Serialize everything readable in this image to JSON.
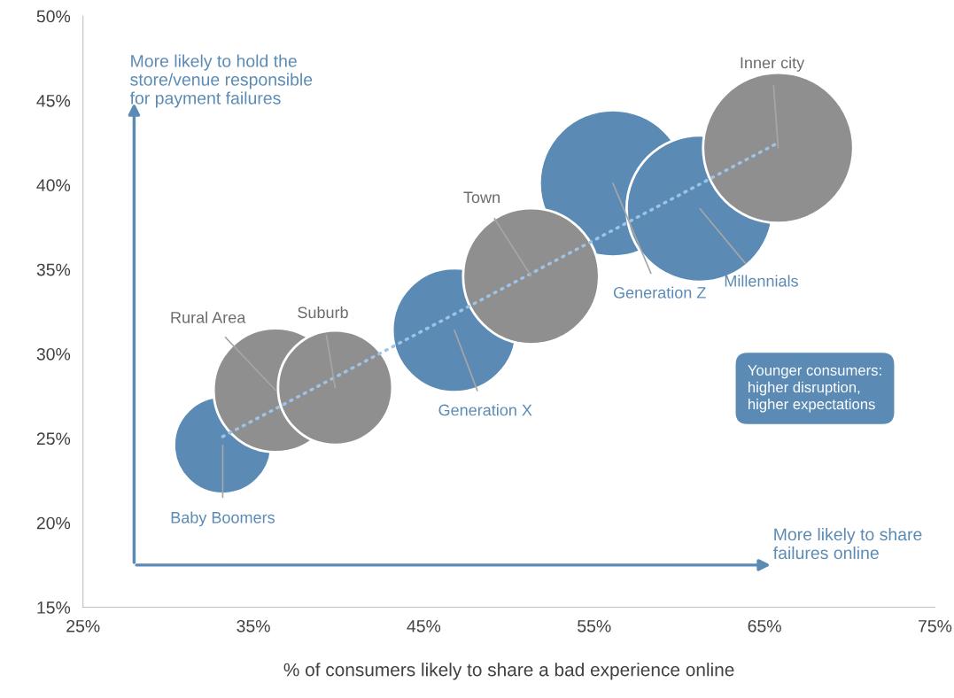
{
  "chart_data": {
    "type": "bubble",
    "xlabel": "% of consumers likely to share a bad experience online",
    "xlim": [
      25,
      75
    ],
    "ylim": [
      15,
      50
    ],
    "xticks": [
      {
        "value": 25,
        "label": "25%"
      },
      {
        "value": 35,
        "label": "35%"
      },
      {
        "value": 45,
        "label": "45%"
      },
      {
        "value": 55,
        "label": "55%"
      },
      {
        "value": 65,
        "label": "65%"
      },
      {
        "value": 75,
        "label": "75%"
      }
    ],
    "yticks": [
      {
        "value": 15,
        "label": "15%"
      },
      {
        "value": 20,
        "label": "20%"
      },
      {
        "value": 25,
        "label": "25%"
      },
      {
        "value": 30,
        "label": "30%"
      },
      {
        "value": 35,
        "label": "35%"
      },
      {
        "value": 40,
        "label": "40%"
      },
      {
        "value": 45,
        "label": "45%"
      },
      {
        "value": 50,
        "label": "50%"
      }
    ],
    "grid": false,
    "series": [
      {
        "color": "#5b8bb5",
        "x": [
          33.2,
          46.8,
          56.1,
          61.2
        ],
        "values": [
          24.6,
          31.4,
          40.1,
          38.6
        ],
        "sizes": [
          0.42,
          0.68,
          0.95,
          0.95
        ],
        "value_labels": [
          "Baby Boomers",
          "Generation X",
          "Generation Z",
          "Millennials"
        ]
      },
      {
        "color": "#8f8f8f",
        "x": [
          36.3,
          39.8,
          51.3,
          65.8
        ],
        "values": [
          27.85,
          28.0,
          34.6,
          42.2
        ],
        "sizes": [
          0.68,
          0.58,
          0.82,
          1.0
        ],
        "value_labels": [
          "Rural Area",
          "Suburb",
          "Town",
          "Inner city"
        ]
      },
      {
        "type": "line",
        "color": "#9dc3e6",
        "line_style": "dotted",
        "x": [
          33.2,
          65.8
        ],
        "values": [
          25.1,
          42.5
        ]
      }
    ],
    "annotations": [
      "More likely to hold the\nstore/venue responsible\nfor payment failures",
      "More likely to share\nfailures online",
      "Younger consumers:\nhigher disruption,\nhigher expectations"
    ]
  }
}
